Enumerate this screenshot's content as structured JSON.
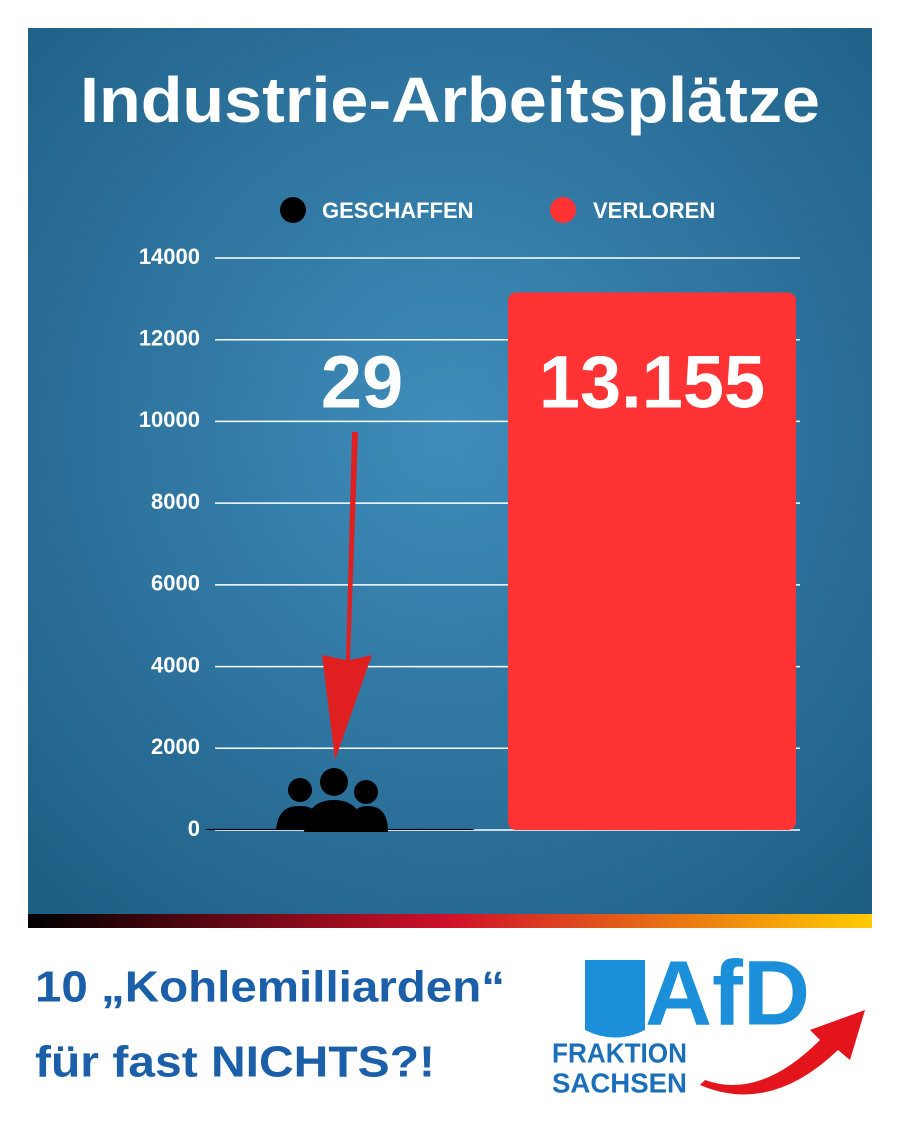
{
  "chart_data": {
    "type": "bar",
    "title": "Industrie-Arbeitsplätze",
    "categories": [
      null
    ],
    "series": [
      {
        "name": "GESCHAFFEN",
        "color": "#000000",
        "values": [
          29
        ],
        "value_labels": [
          "29"
        ]
      },
      {
        "name": "VERLOREN",
        "color": "#ff3333",
        "values": [
          13155
        ],
        "value_labels": [
          "13.155"
        ]
      }
    ],
    "ylim": [
      0,
      14000
    ],
    "yticks": [
      0,
      2000,
      4000,
      6000,
      8000,
      10000,
      12000,
      14000
    ],
    "grid": true
  },
  "footer": {
    "lines": [
      "10 „Kohlemilliarden“",
      "für fast NICHTS?!"
    ]
  },
  "logo": {
    "name": "AfD",
    "lines": [
      "FRAKTION",
      "SACHSEN"
    ]
  }
}
